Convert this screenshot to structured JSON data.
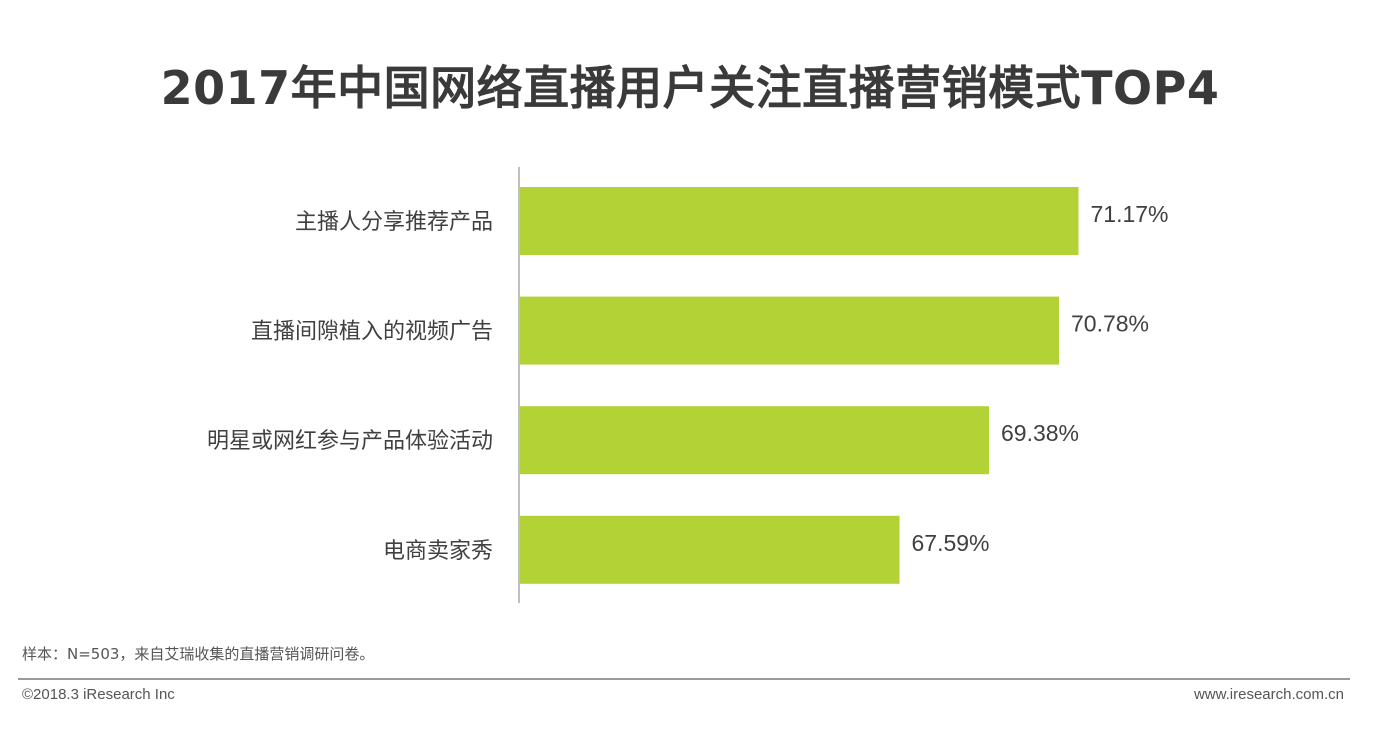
{
  "chart_data": {
    "type": "bar",
    "orientation": "horizontal",
    "title": "2017年中国网络直播用户关注直播营销模式TOP4",
    "categories": [
      "主播人分享推荐产品",
      "直播间隙植入的视频广告",
      "明星或网红参与产品体验活动",
      "电商卖家秀"
    ],
    "values": [
      71.17,
      70.78,
      69.38,
      67.59
    ],
    "value_labels": [
      "71.17%",
      "70.78%",
      "69.38%",
      "67.59%"
    ],
    "bar_color": "#b2d235",
    "xlabel": "",
    "ylabel": "",
    "grid": false,
    "legend": "none"
  },
  "footnote": "样本：N=503，来自艾瑞收集的直播营销调研问卷。",
  "footer": {
    "copyright": "©2018.3 iResearch Inc",
    "website": "www.iresearch.com.cn"
  }
}
